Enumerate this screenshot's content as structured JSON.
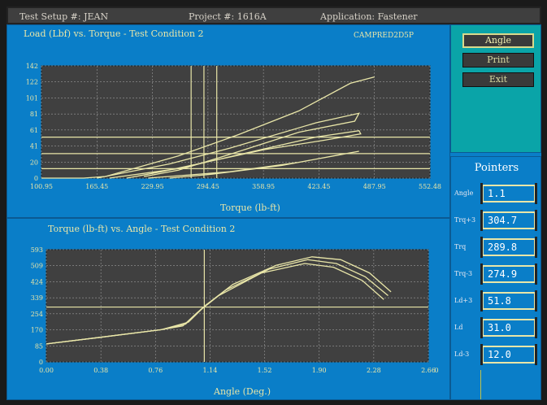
{
  "header": {
    "test_setup": "Test Setup #: JEAN",
    "project": "Project #: 1616A",
    "application": "Application:  Fastener"
  },
  "chart_data": [
    {
      "type": "line",
      "title": "Load (Lbf) vs. Torque - Test Condition 2",
      "annotation": "CAMPRED2D5P",
      "xlabel": "Torque (lb-ft)",
      "ylabel": "",
      "x_ticks": [
        "100.95",
        "165.45",
        "229.95",
        "294.45",
        "358.95",
        "423.45",
        "487.95",
        "552.48"
      ],
      "y_ticks": [
        "142",
        "122",
        "101",
        "81",
        "61",
        "41",
        "20",
        "0"
      ],
      "xlim": [
        100.95,
        552.48
      ],
      "ylim": [
        0,
        142
      ],
      "grid": true,
      "series": [
        {
          "values": [
            [
              100.95,
              0
            ],
            [
              150,
              0
            ],
            [
              175,
              2
            ],
            [
              260,
              28
            ],
            [
              330,
              55
            ],
            [
              400,
              85
            ],
            [
              460,
              120
            ],
            [
              487.95,
              128
            ]
          ]
        },
        {
          "values": [
            [
              165.45,
              0
            ],
            [
              250,
              18
            ],
            [
              320,
              38
            ],
            [
              420,
              70
            ],
            [
              470,
              82
            ],
            [
              465,
              72
            ],
            [
              400,
              58
            ],
            [
              320,
              30
            ],
            [
              260,
              10
            ],
            [
              220,
              2
            ]
          ]
        },
        {
          "values": [
            [
              180,
              0
            ],
            [
              260,
              12
            ],
            [
              340,
              32
            ],
            [
              420,
              52
            ],
            [
              470,
              60
            ],
            [
              472,
              56
            ],
            [
              430,
              48
            ],
            [
              360,
              36
            ],
            [
              300,
              22
            ],
            [
              240,
              8
            ],
            [
              200,
              0
            ]
          ]
        },
        {
          "values": [
            [
              225,
              0
            ],
            [
              320,
              8
            ],
            [
              400,
              20
            ],
            [
              460,
              32
            ],
            [
              470,
              34
            ],
            [
              440,
              28
            ],
            [
              380,
              16
            ],
            [
              300,
              5
            ],
            [
              250,
              0
            ]
          ]
        }
      ],
      "horizontal_lines": [
        51.8,
        31.0,
        12.0
      ],
      "vertical_lines": [
        274.9,
        289.8,
        304.7
      ]
    },
    {
      "type": "line",
      "title": "Torque (lb-ft) vs. Angle - Test Condition 2",
      "xlabel": "Angle (Deg.)",
      "ylabel": "",
      "x_ticks": [
        "0.00",
        "0.38",
        "0.76",
        "1.14",
        "1.52",
        "1.90",
        "2.28",
        "2.66"
      ],
      "x_extra_label": "0",
      "y_ticks": [
        "593",
        "509",
        "424",
        "339",
        "254",
        "170",
        "85",
        "0"
      ],
      "xlim": [
        0,
        2.66
      ],
      "ylim": [
        0,
        593
      ],
      "grid": true,
      "series": [
        {
          "values": [
            [
              0,
              95
            ],
            [
              0.38,
              130
            ],
            [
              0.8,
              170
            ],
            [
              0.95,
              190
            ],
            [
              1.05,
              260
            ],
            [
              1.2,
              350
            ],
            [
              1.5,
              470
            ],
            [
              1.8,
              520
            ],
            [
              2.0,
              500
            ],
            [
              2.2,
              430
            ],
            [
              2.35,
              330
            ]
          ]
        },
        {
          "values": [
            [
              0,
              95
            ],
            [
              0.38,
              130
            ],
            [
              0.8,
              170
            ],
            [
              0.97,
              200
            ],
            [
              1.08,
              280
            ],
            [
              1.25,
              380
            ],
            [
              1.55,
              490
            ],
            [
              1.82,
              540
            ],
            [
              2.02,
              520
            ],
            [
              2.22,
              450
            ],
            [
              2.38,
              350
            ]
          ]
        },
        {
          "values": [
            [
              0,
              95
            ],
            [
              0.38,
              130
            ],
            [
              0.8,
              170
            ],
            [
              0.99,
              210
            ],
            [
              1.11,
              300
            ],
            [
              1.3,
              410
            ],
            [
              1.6,
              510
            ],
            [
              1.85,
              555
            ],
            [
              2.05,
              540
            ],
            [
              2.25,
              470
            ],
            [
              2.4,
              370
            ]
          ]
        }
      ],
      "horizontal_lines": [
        289.8
      ],
      "vertical_lines": [
        1.1
      ]
    }
  ],
  "buttons": {
    "angle": "Angle",
    "print": "Print",
    "exit": "Exit"
  },
  "pointers": {
    "title": "Pointers",
    "rows": [
      {
        "label": "Angle",
        "value": "1.1"
      },
      {
        "label": "Trq+3",
        "value": "304.7"
      },
      {
        "label": "Trq",
        "value": "289.8"
      },
      {
        "label": "Trq-3",
        "value": "274.9"
      },
      {
        "label": "Ld+3",
        "value": "51.8"
      },
      {
        "label": "Ld",
        "value": "31.0"
      },
      {
        "label": "Ld-3",
        "value": "12.0"
      }
    ]
  },
  "colors": {
    "background": "#0a7ec8",
    "plot_area": "#404040",
    "curve": "#e9e6a8",
    "button_panel": "#0aa4a8",
    "header": "#3f3f3f"
  }
}
